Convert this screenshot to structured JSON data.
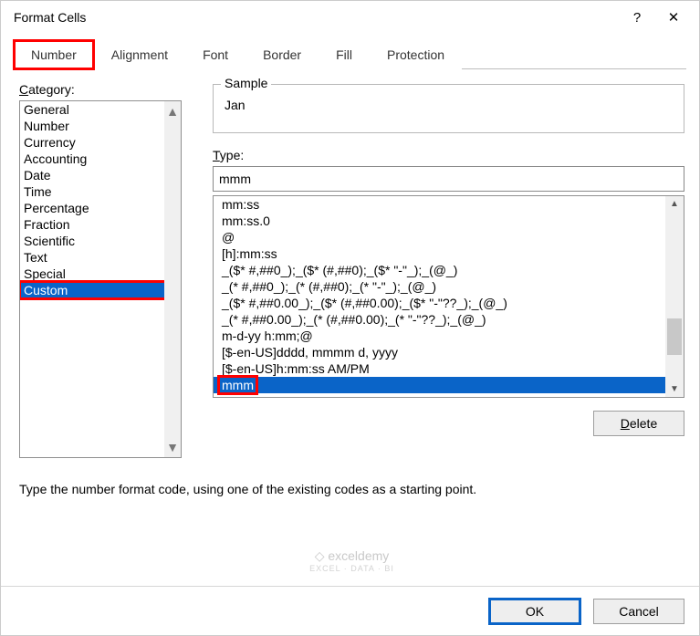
{
  "window": {
    "title": "Format Cells"
  },
  "tabs": {
    "items": [
      "Number",
      "Alignment",
      "Font",
      "Border",
      "Fill",
      "Protection"
    ],
    "active": 0,
    "highlighted": 0
  },
  "category": {
    "label": "Category:",
    "items": [
      "General",
      "Number",
      "Currency",
      "Accounting",
      "Date",
      "Time",
      "Percentage",
      "Fraction",
      "Scientific",
      "Text",
      "Special",
      "Custom"
    ],
    "selected": 11,
    "highlighted": 11
  },
  "sample": {
    "label": "Sample",
    "value": "Jan"
  },
  "type": {
    "label": "Type:",
    "value": "mmm",
    "items": [
      "mm:ss",
      "mm:ss.0",
      "@",
      "[h]:mm:ss",
      "_($* #,##0_);_($* (#,##0);_($* \"-\"_);_(@_)",
      "_(* #,##0_);_(* (#,##0);_(* \"-\"_);_(@_)",
      "_($* #,##0.00_);_($* (#,##0.00);_($* \"-\"??_);_(@_)",
      "_(* #,##0.00_);_(* (#,##0.00);_(* \"-\"??_);_(@_)",
      "m-d-yy h:mm;@",
      "[$-en-US]dddd, mmmm d, yyyy",
      "[$-en-US]h:mm:ss AM/PM",
      "mmm"
    ],
    "selected": 11,
    "highlighted": 11
  },
  "buttons": {
    "delete": "Delete",
    "ok": "OK",
    "cancel": "Cancel"
  },
  "hint": "Type the number format code, using one of the existing codes as a starting point.",
  "watermark": {
    "line1": "exceldemy",
    "line2": "EXCEL · DATA · BI"
  },
  "colors": {
    "highlight_red": "#ff0000",
    "selection_blue": "#0a64c8",
    "primary_outline": "#0a64c8"
  }
}
